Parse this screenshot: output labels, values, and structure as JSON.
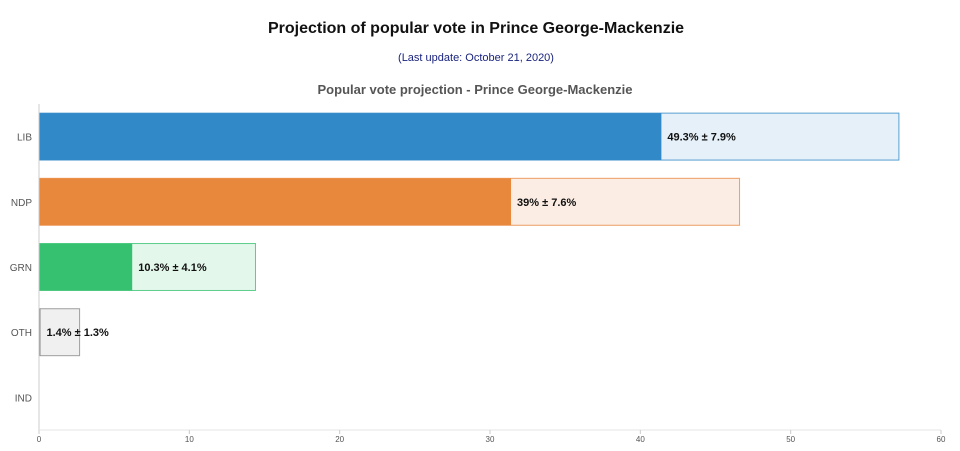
{
  "header": {
    "title": "Projection of popular vote in Prince George-Mackenzie",
    "subtitle": "(Last update: October 21, 2020)"
  },
  "chart_data": {
    "type": "bar",
    "orientation": "horizontal",
    "title": "Popular vote projection - Prince George-Mackenzie",
    "xlim": [
      0,
      60
    ],
    "xticks": [
      0,
      10,
      20,
      30,
      40,
      50,
      60
    ],
    "grid": false,
    "categories": [
      "LIB",
      "NDP",
      "GRN",
      "OTH",
      "IND"
    ],
    "values": [
      49.3,
      39,
      10.3,
      1.4,
      0
    ],
    "errors": [
      7.9,
      7.6,
      4.1,
      1.3,
      0
    ],
    "labels": [
      "49.3% ± 7.9%",
      "39% ± 7.6%",
      "10.3% ± 4.1%",
      "1.4% ± 1.3%",
      ""
    ],
    "colors": [
      "#3289c8",
      "#e8883d",
      "#36c170",
      "#888888",
      "#888888"
    ],
    "range_fill_colors": [
      "#e5f0f9",
      "#fbede3",
      "#e4f7eb",
      "#f0f0f0",
      "#f0f0f0"
    ]
  }
}
